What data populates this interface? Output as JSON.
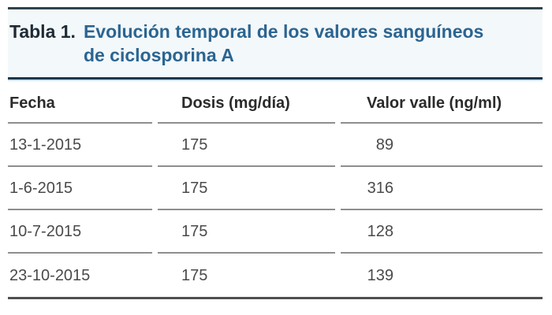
{
  "figure": {
    "caption": {
      "label": "Tabla 1.",
      "title": "Evolución temporal de los valores sanguíneos de ciclosporina A",
      "title_lines": [
        "Evolución temporal de los valores sanguíneos",
        "de ciclosporina A"
      ]
    },
    "columns": [
      {
        "key": "fecha",
        "label": "Fecha"
      },
      {
        "key": "dosis",
        "label": "Dosis (mg/día)"
      },
      {
        "key": "valle",
        "label": "Valor valle (ng/ml)"
      }
    ],
    "rows": [
      {
        "fecha": "13-1-2015",
        "dosis": "175",
        "valle": "89"
      },
      {
        "fecha": "1-6-2015",
        "dosis": "175",
        "valle": "316"
      },
      {
        "fecha": "10-7-2015",
        "dosis": "175",
        "valle": "128"
      },
      {
        "fecha": "23-10-2015",
        "dosis": "175",
        "valle": "139"
      }
    ]
  },
  "chart_data": {
    "type": "table",
    "title": "Tabla 1. Evolución temporal de los valores sanguíneos de ciclosporina A",
    "columns": [
      "Fecha",
      "Dosis (mg/día)",
      "Valor valle (ng/ml)"
    ],
    "rows": [
      [
        "13-1-2015",
        175,
        89
      ],
      [
        "1-6-2015",
        175,
        316
      ],
      [
        "10-7-2015",
        175,
        128
      ],
      [
        "23-10-2015",
        175,
        139
      ]
    ]
  },
  "colors": {
    "title_accent": "#2b6591",
    "caption_label": "#1e2b35",
    "caption_background": "#f3f8fb",
    "top_rule": "#2e444c",
    "title_rule": "#16384e",
    "title_rule_highlight": "#d3e4f0",
    "row_separator": "#8e8e8e",
    "bottom_rule": "#4f4f4f",
    "header_text": "#2b2b2b",
    "body_text": "#4a4a4a"
  }
}
